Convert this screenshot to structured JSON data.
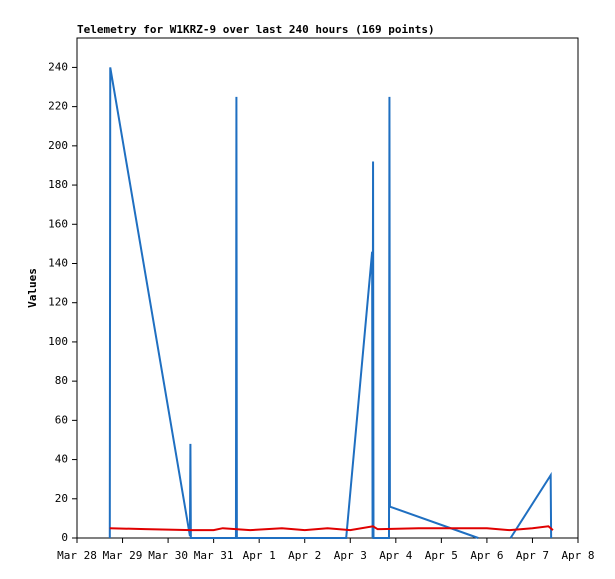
{
  "chart_data": {
    "type": "line",
    "title": "Telemetry for W1KRZ-9 over last 240 hours (169 points)",
    "y_label": "Values",
    "xlim": [
      0,
      11
    ],
    "ylim": [
      0,
      255
    ],
    "xticks": [
      {
        "value": 0,
        "label": "Mar 28"
      },
      {
        "value": 1,
        "label": "Mar 29"
      },
      {
        "value": 2,
        "label": "Mar 30"
      },
      {
        "value": 3,
        "label": "Mar 31"
      },
      {
        "value": 4,
        "label": "Apr 1"
      },
      {
        "value": 5,
        "label": "Apr 2"
      },
      {
        "value": 6,
        "label": "Apr 3"
      },
      {
        "value": 7,
        "label": "Apr 4"
      },
      {
        "value": 8,
        "label": "Apr 5"
      },
      {
        "value": 9,
        "label": "Apr 6"
      },
      {
        "value": 10,
        "label": "Apr 7"
      },
      {
        "value": 11,
        "label": "Apr 8"
      }
    ],
    "yticks": [
      0,
      20,
      40,
      60,
      80,
      100,
      120,
      140,
      160,
      180,
      200,
      220,
      240
    ],
    "grid": false,
    "series": [
      {
        "color": "#1f6fc1",
        "x": [
          0.72,
          0.73,
          2.48,
          2.49,
          2.5,
          3.49,
          3.5,
          3.51,
          5.91,
          6.48,
          6.49,
          6.5,
          6.51,
          6.85,
          6.86,
          6.87,
          8.81,
          null,
          9.52,
          10.4,
          10.41
        ],
        "values": [
          0,
          240,
          1,
          48,
          0,
          0,
          225,
          0,
          0,
          146,
          0,
          192,
          0,
          0,
          225,
          16,
          0,
          null,
          0,
          32,
          0
        ]
      },
      {
        "color": "#e00000",
        "x": [
          0.72,
          1.5,
          2.5,
          3.0,
          3.2,
          3.8,
          4.5,
          5.0,
          5.5,
          6.0,
          6.5,
          6.6,
          7.5,
          8.5,
          9.0,
          9.5,
          10.0,
          10.35,
          10.45
        ],
        "values": [
          5,
          4.5,
          4,
          4,
          5,
          4,
          5,
          4,
          5,
          4,
          6,
          4.5,
          5,
          5,
          5,
          4,
          5,
          6,
          4
        ]
      }
    ]
  }
}
